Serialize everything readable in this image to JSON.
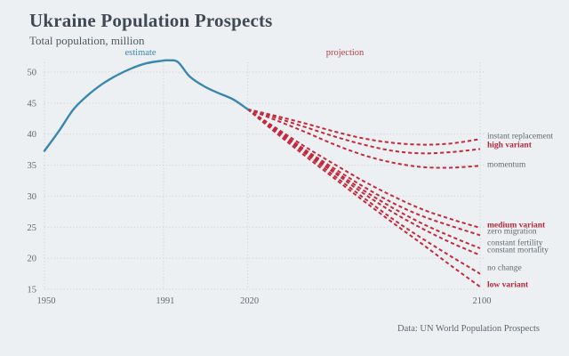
{
  "header": {
    "title": "Ukraine Population Prospects",
    "subtitle": "Total population, million"
  },
  "footer": {
    "source": "Data: UN World Population Prospects"
  },
  "chart_data": {
    "type": "line",
    "title": "Ukraine Population Prospects",
    "subtitle": "Total population, million",
    "xlabel": "",
    "ylabel": "Total population, million",
    "xlim": [
      1950,
      2100
    ],
    "ylim": [
      15,
      52
    ],
    "x_ticks": [
      1950,
      1991,
      2020,
      2100
    ],
    "y_ticks": [
      15,
      20,
      25,
      30,
      35,
      40,
      45,
      50
    ],
    "grid": "dotted",
    "legend_position": "right-of-lines",
    "zones": [
      {
        "label": "estimate",
        "color": "#3a87ad",
        "range": [
          1950,
          2020
        ]
      },
      {
        "label": "projection",
        "color": "#b5404d",
        "range": [
          2020,
          2100
        ]
      }
    ],
    "colors": {
      "background": "#edf0f2",
      "estimate_line": "#3a87ad",
      "projection_line": "#c22b3e",
      "emphasis_label": "#b5293c",
      "muted_label": "#5f6a73",
      "gridline": "#c6cdd4"
    },
    "estimate_series": {
      "name": "estimate",
      "style": "solid",
      "points": [
        [
          1950,
          37.3
        ],
        [
          1955,
          40.5
        ],
        [
          1960,
          44.0
        ],
        [
          1965,
          46.3
        ],
        [
          1970,
          48.1
        ],
        [
          1975,
          49.5
        ],
        [
          1980,
          50.6
        ],
        [
          1985,
          51.4
        ],
        [
          1990,
          51.8
        ],
        [
          1993,
          51.9
        ],
        [
          1996,
          51.6
        ],
        [
          2000,
          49.3
        ],
        [
          2005,
          47.7
        ],
        [
          2010,
          46.6
        ],
        [
          2015,
          45.6
        ],
        [
          2020,
          44.0
        ]
      ]
    },
    "projection_series": [
      {
        "name": "instant replacement",
        "label_style": "gray",
        "points": [
          [
            2020,
            44.0
          ],
          [
            2030,
            42.9
          ],
          [
            2040,
            41.7
          ],
          [
            2050,
            40.4
          ],
          [
            2060,
            39.3
          ],
          [
            2070,
            38.6
          ],
          [
            2080,
            38.3
          ],
          [
            2090,
            38.5
          ],
          [
            2100,
            39.2
          ]
        ]
      },
      {
        "name": "high variant",
        "label_style": "bold-red",
        "points": [
          [
            2020,
            44.0
          ],
          [
            2030,
            42.6
          ],
          [
            2040,
            41.1
          ],
          [
            2050,
            39.6
          ],
          [
            2060,
            38.3
          ],
          [
            2070,
            37.3
          ],
          [
            2080,
            36.9
          ],
          [
            2090,
            37.1
          ],
          [
            2100,
            37.6
          ]
        ]
      },
      {
        "name": "momentum",
        "label_style": "gray",
        "points": [
          [
            2020,
            44.0
          ],
          [
            2030,
            42.2
          ],
          [
            2040,
            40.3
          ],
          [
            2050,
            38.3
          ],
          [
            2060,
            36.6
          ],
          [
            2070,
            35.4
          ],
          [
            2080,
            34.7
          ],
          [
            2090,
            34.6
          ],
          [
            2100,
            34.9
          ]
        ]
      },
      {
        "name": "medium variant",
        "label_style": "bold-red",
        "points": [
          [
            2020,
            44.0
          ],
          [
            2030,
            40.9
          ],
          [
            2040,
            37.9
          ],
          [
            2050,
            35.1
          ],
          [
            2060,
            32.4
          ],
          [
            2070,
            30.0
          ],
          [
            2080,
            27.9
          ],
          [
            2090,
            26.3
          ],
          [
            2100,
            24.9
          ]
        ]
      },
      {
        "name": "zero migration",
        "label_style": "gray",
        "points": [
          [
            2020,
            44.0
          ],
          [
            2030,
            40.7
          ],
          [
            2040,
            37.4
          ],
          [
            2050,
            34.4
          ],
          [
            2060,
            31.5
          ],
          [
            2070,
            28.9
          ],
          [
            2080,
            26.8
          ],
          [
            2090,
            25.2
          ],
          [
            2100,
            23.7
          ]
        ]
      },
      {
        "name": "constant fertility",
        "label_style": "gray",
        "points": [
          [
            2020,
            44.0
          ],
          [
            2030,
            40.6
          ],
          [
            2040,
            37.2
          ],
          [
            2050,
            34.0
          ],
          [
            2060,
            30.9
          ],
          [
            2070,
            28.1
          ],
          [
            2080,
            25.6
          ],
          [
            2090,
            23.5
          ],
          [
            2100,
            21.6
          ]
        ]
      },
      {
        "name": "constant mortality",
        "label_style": "gray",
        "points": [
          [
            2020,
            44.0
          ],
          [
            2030,
            40.5
          ],
          [
            2040,
            37.0
          ],
          [
            2050,
            33.7
          ],
          [
            2060,
            30.4
          ],
          [
            2070,
            27.4
          ],
          [
            2080,
            24.8
          ],
          [
            2090,
            22.5
          ],
          [
            2100,
            20.5
          ]
        ]
      },
      {
        "name": "no change",
        "label_style": "gray",
        "points": [
          [
            2020,
            44.0
          ],
          [
            2030,
            40.4
          ],
          [
            2040,
            36.8
          ],
          [
            2050,
            33.2
          ],
          [
            2060,
            29.7
          ],
          [
            2070,
            26.3
          ],
          [
            2080,
            23.2
          ],
          [
            2090,
            20.3
          ],
          [
            2100,
            17.5
          ]
        ]
      },
      {
        "name": "low variant",
        "label_style": "bold-red",
        "points": [
          [
            2020,
            44.0
          ],
          [
            2030,
            40.1
          ],
          [
            2040,
            36.4
          ],
          [
            2050,
            32.8
          ],
          [
            2060,
            29.2
          ],
          [
            2070,
            25.7
          ],
          [
            2080,
            22.3
          ],
          [
            2090,
            18.8
          ],
          [
            2100,
            15.4
          ]
        ]
      }
    ]
  }
}
